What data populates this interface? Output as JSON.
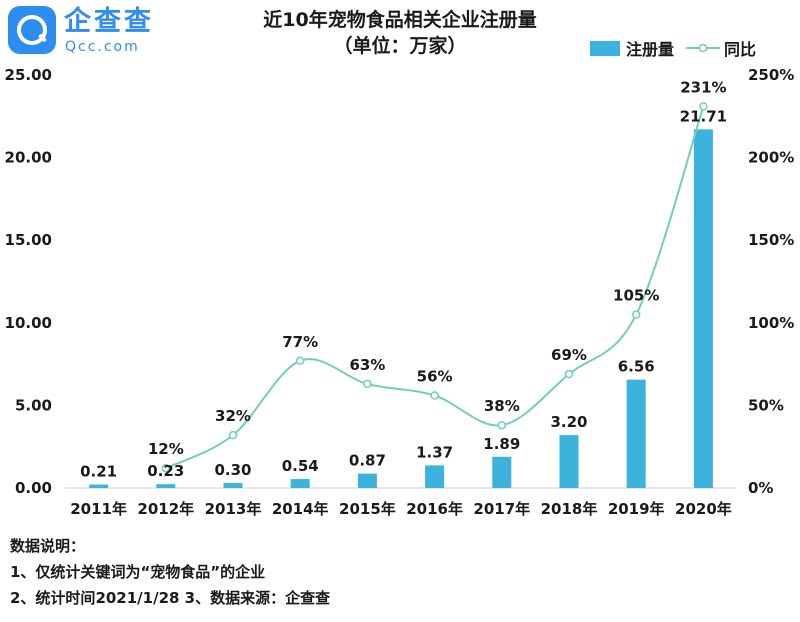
{
  "logo": {
    "name_cn": "企查查",
    "name_en": "Qcc.com"
  },
  "chart_data": {
    "type": "bar",
    "title": "近10年宠物食品相关企业注册量",
    "subtitle": "（单位：万家）",
    "categories": [
      "2011年",
      "2012年",
      "2013年",
      "2014年",
      "2015年",
      "2016年",
      "2017年",
      "2018年",
      "2019年",
      "2020年"
    ],
    "series": [
      {
        "name": "注册量",
        "type": "bar",
        "axis": "left",
        "color": "#3bb3dc",
        "values": [
          0.21,
          0.23,
          0.3,
          0.54,
          0.87,
          1.37,
          1.89,
          3.2,
          6.56,
          21.71
        ],
        "labels": [
          "0.21",
          "0.23",
          "0.30",
          "0.54",
          "0.87",
          "1.37",
          "1.89",
          "3.20",
          "6.56",
          "21.71"
        ]
      },
      {
        "name": "同比",
        "type": "line",
        "axis": "right",
        "color": "#6fd0b4",
        "x": [
          "2012年",
          "2013年",
          "2014年",
          "2015年",
          "2016年",
          "2017年",
          "2018年",
          "2019年",
          "2020年"
        ],
        "values": [
          12,
          32,
          77,
          63,
          56,
          38,
          69,
          105,
          231
        ],
        "labels": [
          "12%",
          "32%",
          "77%",
          "63%",
          "56%",
          "38%",
          "69%",
          "105%",
          "231%"
        ]
      }
    ],
    "y_left": {
      "min": 0,
      "max": 25,
      "ticks": [
        "0.00",
        "5.00",
        "10.00",
        "15.00",
        "20.00",
        "25.00"
      ]
    },
    "y_right": {
      "min": 0,
      "max": 250,
      "ticks": [
        "0%",
        "50%",
        "100%",
        "150%",
        "200%",
        "250%"
      ]
    },
    "grid": false,
    "legend_position": "top-right"
  },
  "notes": {
    "heading": "数据说明：",
    "line1": "1、仅统计关键词为“宠物食品”的企业",
    "line2": "2、统计时间2021/1/28   3、数据来源：企查查"
  }
}
